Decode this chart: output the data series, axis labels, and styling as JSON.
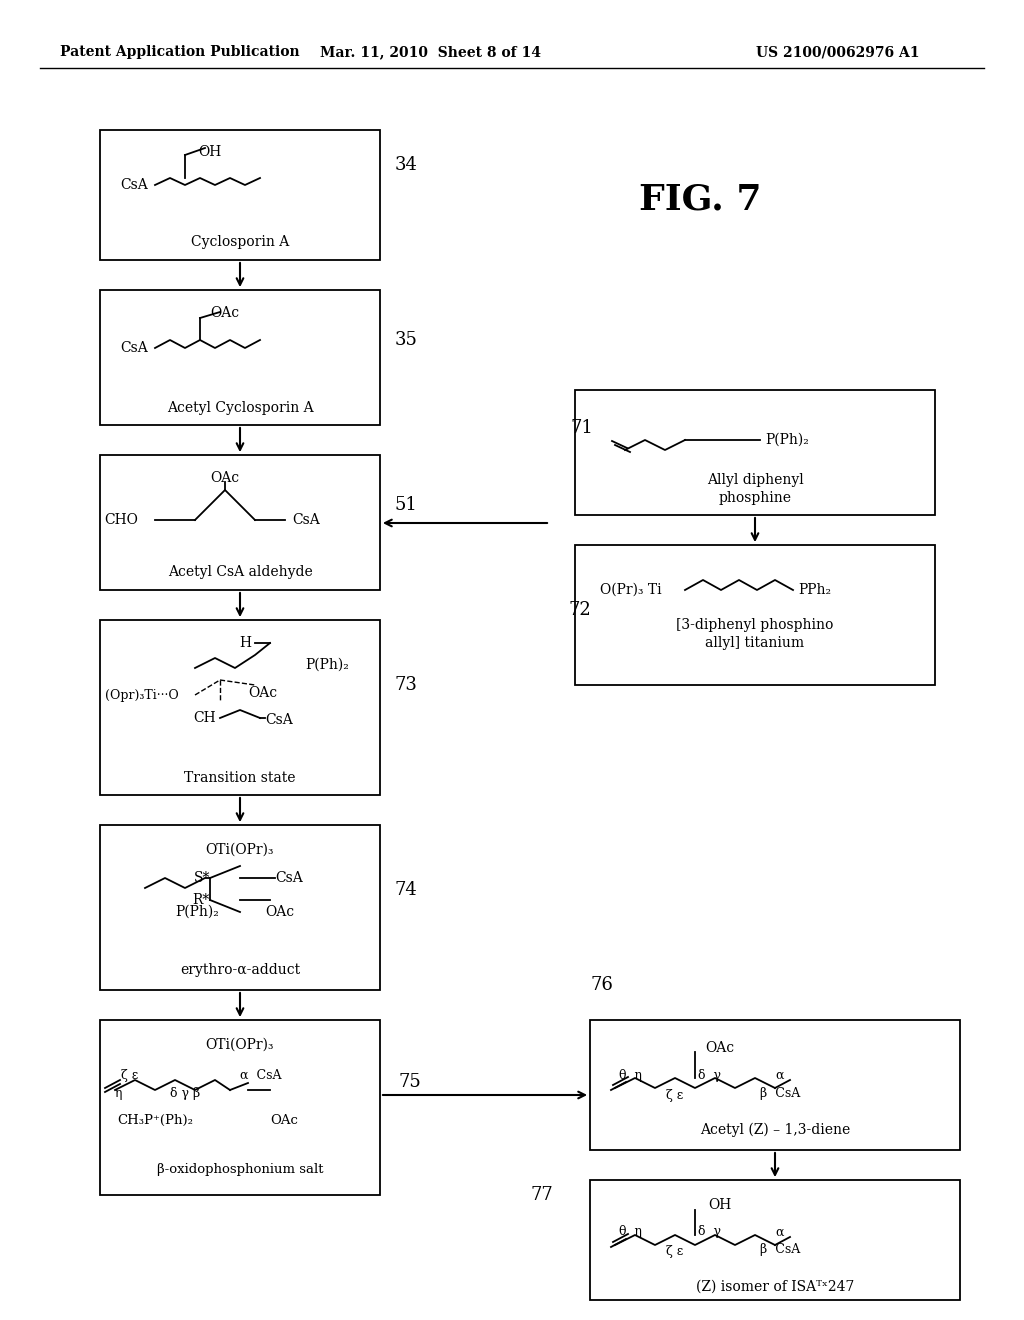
{
  "header_left": "Patent Application Publication",
  "header_center": "Mar. 11, 2010  Sheet 8 of 14",
  "header_right": "US 2100/0062976 A1",
  "fig_title": "FIG. 7",
  "bg_color": "#ffffff"
}
